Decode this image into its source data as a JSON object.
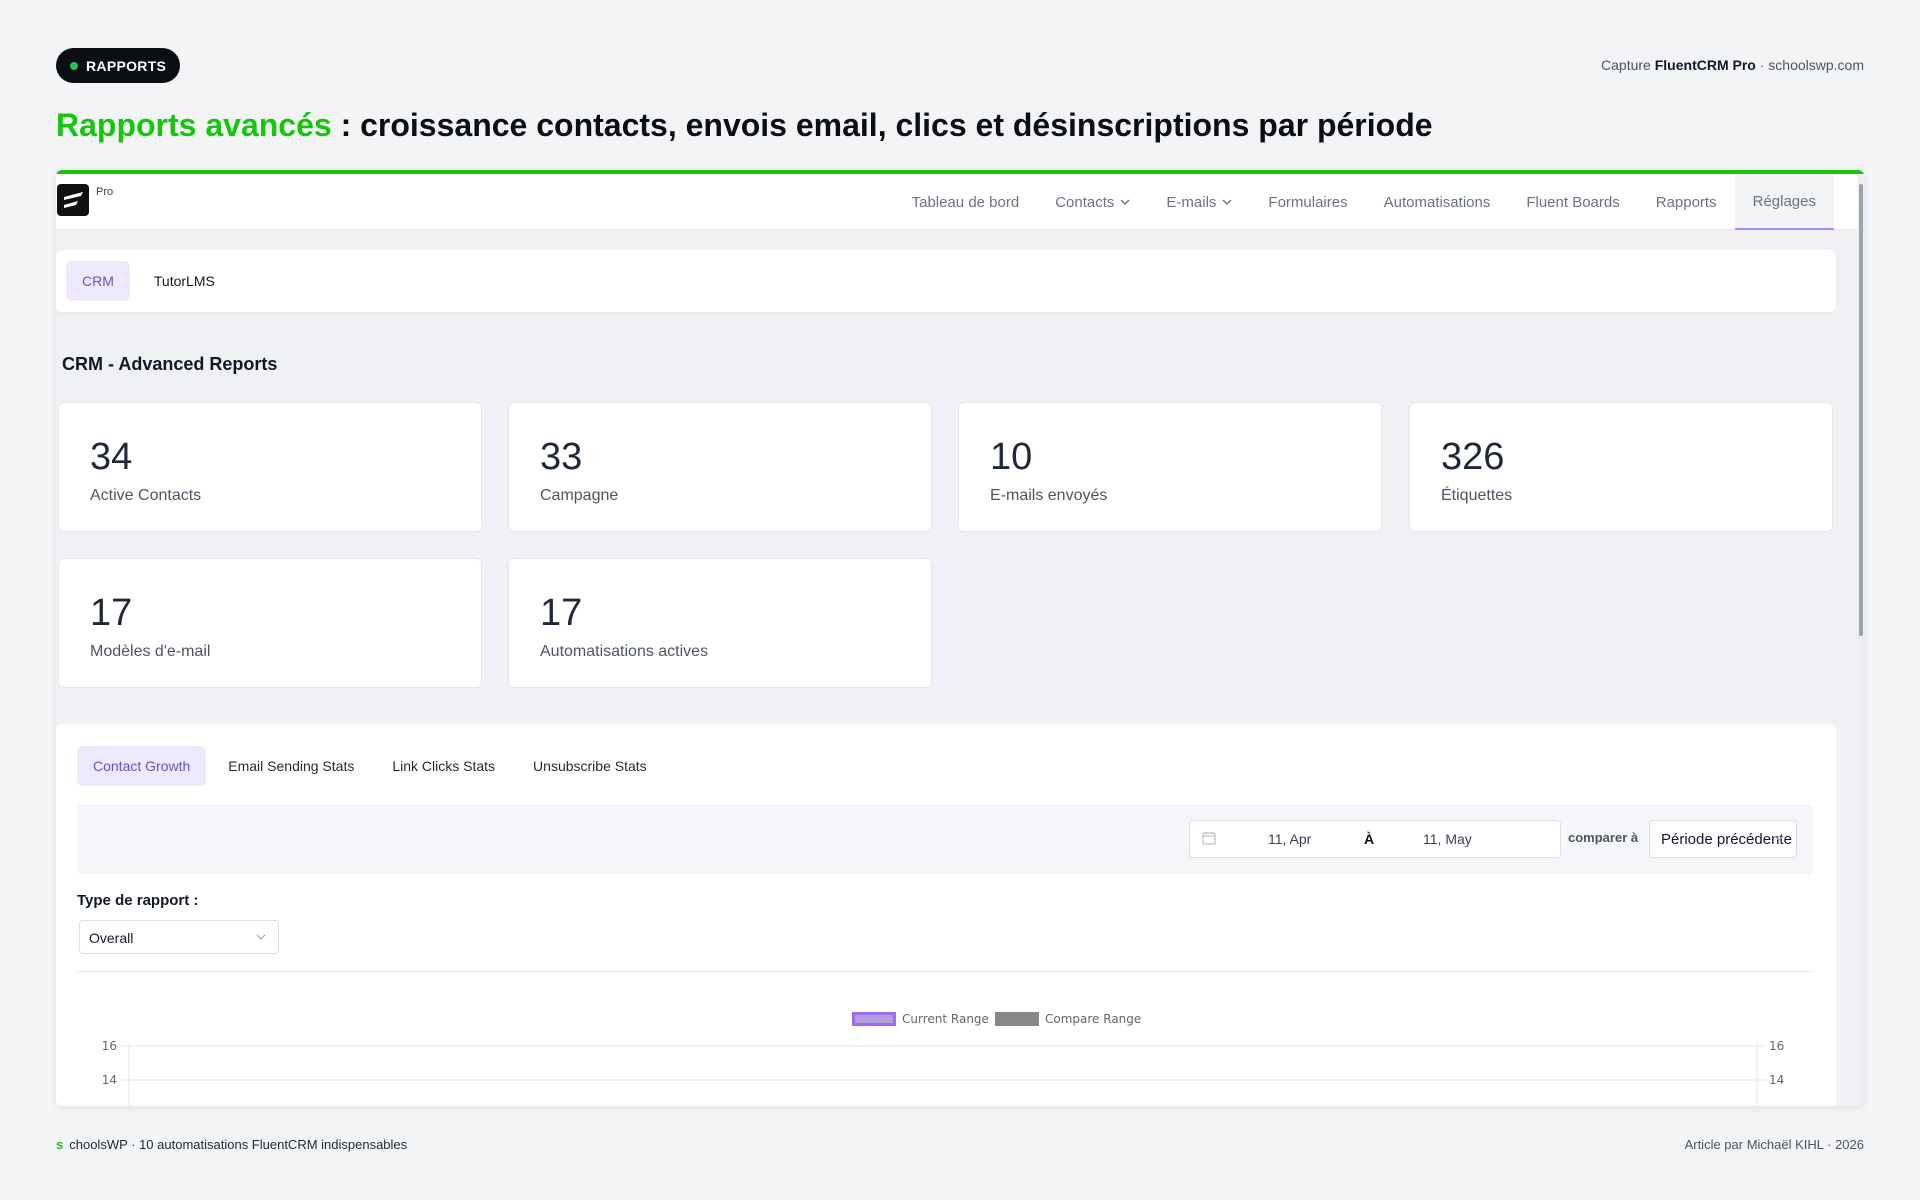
{
  "header": {
    "badge": "RAPPORTS",
    "capture_prefix": "Capture",
    "capture_brand": "FluentCRM Pro",
    "capture_suffix": "· schoolswp.com",
    "headline_accent": "Rapports avancés",
    "headline_rest": " : croissance contacts, envois email, clics et désinscriptions par période",
    "accent_color": "#16c60c"
  },
  "app": {
    "logo_label": "Pro",
    "nav": [
      {
        "label": "Tableau de bord"
      },
      {
        "label": "Contacts"
      },
      {
        "label": "E-mails"
      },
      {
        "label": "Formulaires"
      },
      {
        "label": "Automatisations"
      },
      {
        "label": "Fluent Boards"
      },
      {
        "label": "Rapports"
      },
      {
        "label": "Réglages"
      }
    ],
    "subtabs": [
      "CRM",
      "TutorLMS"
    ],
    "section_title": "CRM - Advanced Reports",
    "stats": [
      {
        "value": "34",
        "label": "Active Contacts"
      },
      {
        "value": "33",
        "label": "Campagne"
      },
      {
        "value": "10",
        "label": "E-mails envoyés"
      },
      {
        "value": "326",
        "label": "Étiquettes"
      },
      {
        "value": "17",
        "label": "Modèles d'e-mail"
      },
      {
        "value": "17",
        "label": "Automatisations actives"
      }
    ],
    "report_tabs": [
      "Contact Growth",
      "Email Sending Stats",
      "Link Clicks Stats",
      "Unsubscribe Stats"
    ],
    "date_from": "11, Apr",
    "date_sep": "À",
    "date_to": "11, May",
    "compare_label": "comparer à",
    "compare_value": "Période précédente",
    "report_type_label": "Type de rapport :",
    "report_type_value": "Overall",
    "chart_data": {
      "type": "line",
      "series": [
        {
          "name": "Current Range",
          "color": "#a78bfa"
        },
        {
          "name": "Compare Range",
          "color": "#888888"
        }
      ],
      "y_ticks": [
        "16",
        "14"
      ],
      "y2_ticks": [
        "16",
        "14"
      ]
    }
  },
  "footer": {
    "left_mark": "s",
    "left_text": "choolsWP · 10 automatisations FluentCRM indispensables",
    "right_text": "Article par Michaël KIHL · 2026"
  }
}
